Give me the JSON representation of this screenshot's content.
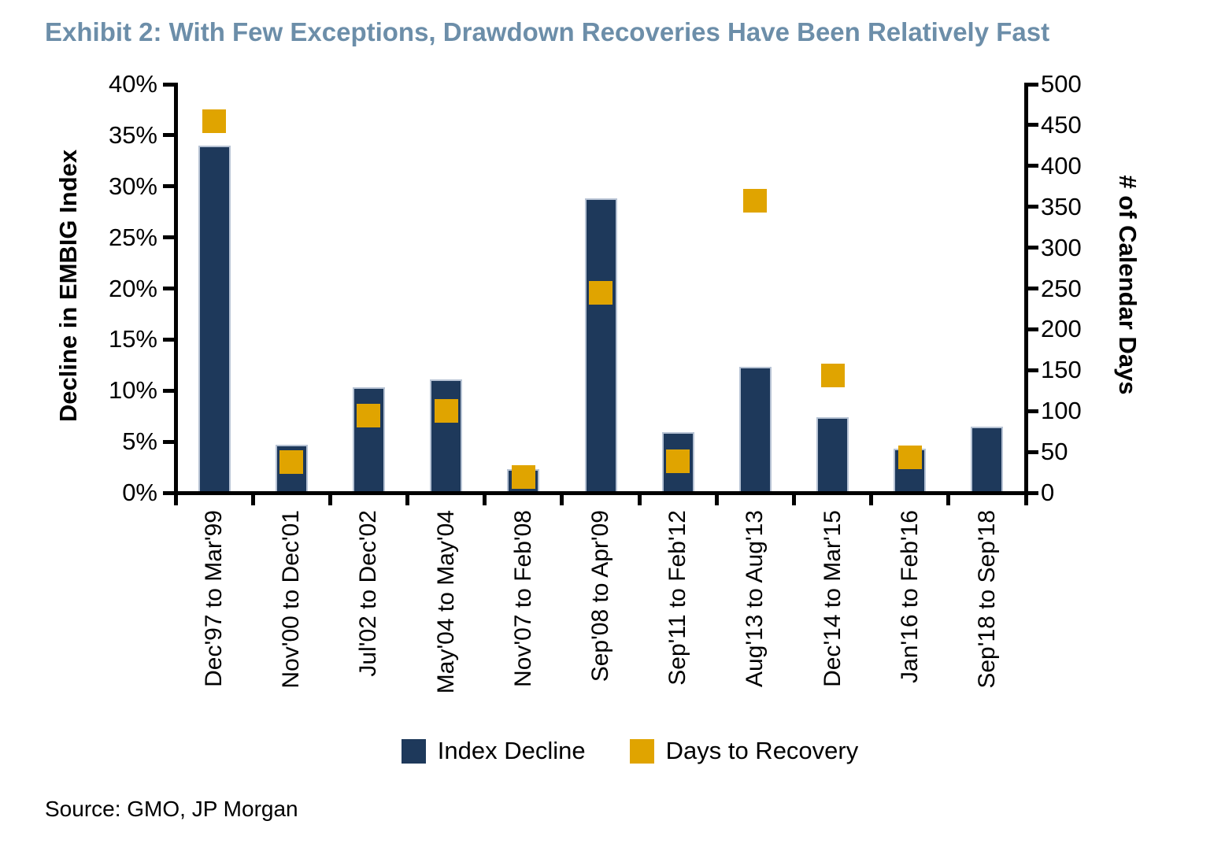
{
  "title": "Exhibit 2: With Few Exceptions, Drawdown Recoveries Have Been Relatively Fast",
  "source": "Source: GMO, JP Morgan",
  "colors": {
    "title_text": "#6C8EA9",
    "bar_fill": "#1E395B",
    "bar_edge": "#B7C3D4",
    "marker_fill": "#E0A400",
    "axis": "#000000",
    "text": "#000000"
  },
  "legend": [
    {
      "label": "Index Decline",
      "swatch": "bar_fill"
    },
    {
      "label": "Days to Recovery",
      "swatch": "marker_fill"
    }
  ],
  "chart_data": {
    "type": "bar",
    "title": "Exhibit 2: With Few Exceptions, Drawdown Recoveries Have Been Relatively Fast",
    "categories": [
      "Dec'97 to Mar'99",
      "Nov'00 to Dec'01",
      "Jul'02 to Dec'02",
      "May'04 to May'04",
      "Nov'07 to Feb'08",
      "Sep'08 to Apr'09",
      "Sep'11 to Feb'12",
      "Aug'13 to Aug'13",
      "Dec'14 to Mar'15",
      "Jan'16 to Feb'16",
      "Sep'18 to Sep'18"
    ],
    "series": [
      {
        "name": "Index Decline",
        "type": "bar",
        "axis": "left",
        "unit": "%",
        "values": [
          34,
          4.7,
          10.3,
          11.1,
          2.3,
          28.8,
          5.9,
          12.3,
          7.4,
          4.3,
          6.5
        ]
      },
      {
        "name": "Days to Recovery",
        "type": "scatter-square",
        "axis": "right",
        "unit": "calendar days",
        "values": [
          455,
          38,
          94,
          100,
          19,
          245,
          39,
          357,
          144,
          43,
          null
        ]
      }
    ],
    "left_axis": {
      "label": "Decline in EMBIG Index",
      "range": [
        0,
        40
      ],
      "tick_values": [
        0,
        5,
        10,
        15,
        20,
        25,
        30,
        35,
        40
      ],
      "tick_labels": [
        "0%",
        "5%",
        "10%",
        "15%",
        "20%",
        "25%",
        "30%",
        "35%",
        "40%"
      ]
    },
    "right_axis": {
      "label": "# of Calendar Days",
      "range": [
        0,
        500
      ],
      "tick_values": [
        0,
        50,
        100,
        150,
        200,
        250,
        300,
        350,
        400,
        450,
        500
      ],
      "tick_labels": [
        "0",
        "50",
        "100",
        "150",
        "200",
        "250",
        "300",
        "350",
        "400",
        "450",
        "500"
      ]
    },
    "grid": false,
    "legend_position": "bottom"
  }
}
